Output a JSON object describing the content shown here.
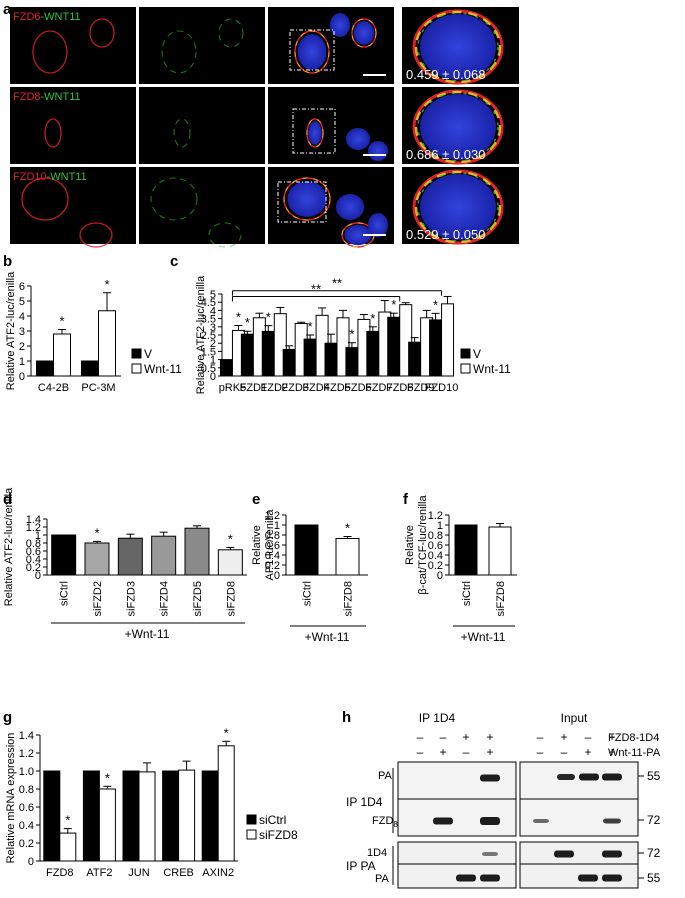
{
  "panel_letters": {
    "a": "a",
    "b": "b",
    "c": "c",
    "d": "d",
    "e": "e",
    "f": "f",
    "g": "g",
    "h": "h"
  },
  "microscopy": {
    "rows": [
      {
        "fzd": "FZD6",
        "wnt": "-WNT11",
        "value": "0.459 ± 0.068"
      },
      {
        "fzd": "FZD8",
        "wnt": "-WNT11",
        "value": "0.686 ± 0.030"
      },
      {
        "fzd": "FZD10",
        "wnt": "-WNT11",
        "value": "0.529 ± 0.050"
      }
    ],
    "colors": {
      "red": "#e0202a",
      "green": "#2fc23a",
      "blue": "#2233cc",
      "yellow": "#e8d830"
    }
  },
  "chart_data": [
    {
      "id": "b",
      "type": "bar",
      "ylabel": "Relative ATF2-luc/renilla",
      "categories": [
        "C4-2B",
        "PC-3M"
      ],
      "ylim": [
        0,
        6
      ],
      "yticks": [
        "0",
        "1",
        "2",
        "3",
        "4",
        "5",
        "6"
      ],
      "series": [
        {
          "name": "V",
          "color": "#000000",
          "values": [
            1.0,
            1.0
          ],
          "errors": [
            0,
            0
          ],
          "stars": [
            "",
            ""
          ]
        },
        {
          "name": "Wnt-11",
          "color": "#ffffff",
          "values": [
            2.8,
            4.35
          ],
          "errors": [
            0.3,
            1.2
          ],
          "stars": [
            "*",
            "*"
          ]
        }
      ]
    },
    {
      "id": "c",
      "type": "bar",
      "ylabel": "Relative ATF2-luc/renilla",
      "categories": [
        "pRK5",
        "FZD1",
        "FZD2",
        "FZD3",
        "FZD4",
        "FZD5",
        "FZD6",
        "FZD7",
        "FZD8",
        "FZD9",
        "FZD10"
      ],
      "ylim": [
        0,
        5
      ],
      "yticks": [
        "0",
        "0.5",
        "1",
        "1.5",
        "2",
        "2.5",
        "3",
        "3.5",
        "4",
        "4.5",
        "5"
      ],
      "series": [
        {
          "name": "V",
          "color": "#000000",
          "values": [
            1.0,
            2.55,
            2.72,
            1.62,
            2.25,
            2.0,
            1.73,
            2.72,
            3.58,
            2.06,
            3.42
          ],
          "errors": [
            0,
            0.18,
            0.35,
            0.22,
            0.25,
            0.55,
            0.3,
            0.28,
            0.25,
            0.28,
            0.4
          ],
          "stars": [
            "",
            "*",
            "*",
            "",
            "*",
            "",
            "*",
            "*",
            "*",
            "",
            "*"
          ]
        },
        {
          "name": "Wnt-11",
          "color": "#ffffff",
          "values": [
            2.78,
            3.55,
            3.8,
            3.2,
            3.7,
            3.55,
            3.45,
            3.9,
            4.35,
            3.55,
            4.4
          ],
          "errors": [
            0.3,
            0.28,
            0.38,
            0.08,
            0.45,
            0.45,
            0.3,
            0.7,
            0.12,
            0.45,
            0.45
          ],
          "stars": [
            "*",
            "",
            "",
            "",
            "",
            "",
            "",
            "",
            "",
            "",
            ""
          ]
        }
      ],
      "brackets": [
        {
          "label": "**",
          "from": 0,
          "to": 10,
          "level": 5.2
        },
        {
          "label": "**",
          "from": 0,
          "to": 8,
          "level": 4.85
        }
      ]
    },
    {
      "id": "d",
      "type": "bar",
      "ylabel": "Relative ATF2-luc/renilla",
      "categories": [
        "siCtrl",
        "siFZD2",
        "siFZD3",
        "siFZD4",
        "siFZD5",
        "siFZD8"
      ],
      "ylim": [
        0,
        1.4
      ],
      "yticks": [
        "0",
        "0.2",
        "0.4",
        "0.6",
        "0.8",
        "1",
        "1.2",
        "1.4"
      ],
      "colors": [
        "#000000",
        "#a6a6a6",
        "#666666",
        "#999999",
        "#8a8a8a",
        "#eeeeee"
      ],
      "values": [
        1.0,
        0.8,
        0.92,
        0.97,
        1.17,
        0.63
      ],
      "errors": [
        0,
        0.04,
        0.1,
        0.1,
        0.06,
        0.06
      ],
      "stars": [
        "",
        "*",
        "",
        "",
        "",
        "*"
      ],
      "treatment": "+Wnt-11"
    },
    {
      "id": "e",
      "type": "bar",
      "ylabel": [
        "Relative",
        "AP1-luc/renilla"
      ],
      "categories": [
        "siCtrl",
        "siFZD8"
      ],
      "ylim": [
        0,
        1.2
      ],
      "yticks": [
        "0",
        "0.2",
        "0.4",
        "0.6",
        "0.8",
        "1",
        "1.2"
      ],
      "colors": [
        "#000000",
        "#ffffff"
      ],
      "values": [
        1.0,
        0.73
      ],
      "errors": [
        0,
        0.04
      ],
      "stars": [
        "",
        "*"
      ],
      "treatment": "+Wnt-11"
    },
    {
      "id": "f",
      "type": "bar",
      "ylabel": [
        "Relative",
        "β-cat/TCF-luc/renilla"
      ],
      "categories": [
        "siCtrl",
        "siFZD8"
      ],
      "ylim": [
        0,
        1.2
      ],
      "yticks": [
        "0",
        "0.2",
        "0.4",
        "0.6",
        "0.8",
        "1",
        "1.2"
      ],
      "colors": [
        "#000000",
        "#ffffff"
      ],
      "values": [
        1.0,
        0.96
      ],
      "errors": [
        0,
        0.07
      ],
      "stars": [
        "",
        ""
      ],
      "treatment": "+Wnt-11"
    },
    {
      "id": "g",
      "type": "bar",
      "ylabel": "Relative mRNA expression",
      "categories": [
        "FZD8",
        "ATF2",
        "JUN",
        "CREB",
        "AXIN2"
      ],
      "ylim": [
        0,
        1.4
      ],
      "yticks": [
        "0",
        "0.2",
        "0.4",
        "0.6",
        "0.8",
        "1.0",
        "1.2",
        "1.4"
      ],
      "series": [
        {
          "name": "siCtrl",
          "color": "#000000",
          "values": [
            1.0,
            1.0,
            1.0,
            1.0,
            1.0
          ],
          "errors": [
            0,
            0,
            0,
            0,
            0
          ],
          "stars": [
            "",
            "",
            "",
            "",
            ""
          ]
        },
        {
          "name": "siFZD8",
          "color": "#ffffff",
          "values": [
            0.31,
            0.8,
            0.99,
            1.01,
            1.28
          ],
          "errors": [
            0.05,
            0.03,
            0.1,
            0.1,
            0.05
          ],
          "stars": [
            "*",
            "*",
            "",
            "",
            "*"
          ]
        }
      ]
    }
  ],
  "blot": {
    "header_left": "IP 1D4",
    "header_right": "Input",
    "row_labels": [
      "FZD8-1D4",
      "Wnt-11-PA"
    ],
    "lanes": {
      "left": [
        [
          "–",
          "–",
          "+",
          "+"
        ],
        [
          "–",
          "+",
          "–",
          "+"
        ]
      ],
      "right": [
        [
          "–",
          "+",
          "–",
          "+"
        ],
        [
          "–",
          "–",
          "+",
          "+"
        ]
      ]
    },
    "ip1": "IP 1D4",
    "ip2": "IP PA",
    "pa": "PA",
    "fzd": "FZD",
    "fzd_sub": "8",
    "d1d4": "1D4",
    "mw": [
      "55",
      "72",
      "72",
      "55"
    ]
  }
}
